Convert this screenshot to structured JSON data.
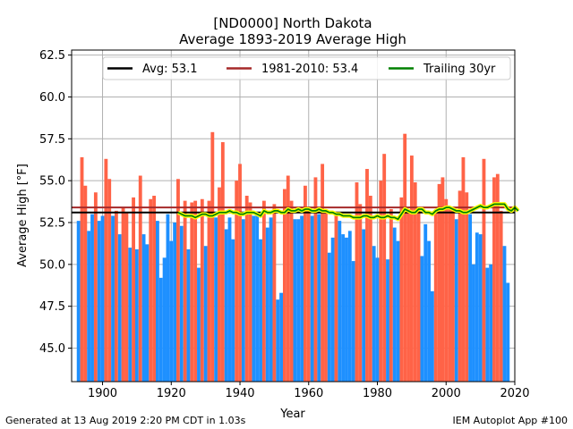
{
  "chart_data": {
    "type": "bar",
    "title": "[ND0000] North Dakota",
    "subtitle": "Average 1893-2019 Average High",
    "xlabel": "Year",
    "ylabel": "Average High [°F]",
    "xlim": [
      1891,
      2020
    ],
    "ylim": [
      43,
      62.8
    ],
    "xticks": [
      1900,
      1920,
      1940,
      1960,
      1980,
      2000,
      2020
    ],
    "yticks": [
      45.0,
      47.5,
      50.0,
      52.5,
      55.0,
      57.5,
      60.0,
      62.5
    ],
    "grid": true,
    "legend_position": "top",
    "colors": {
      "above": "#ff6347",
      "below": "#1e90ff",
      "avg": "#000000",
      "normal": "#a52a2a",
      "trailing": "#008000",
      "trailing_halo": "#ffff00"
    },
    "years_start": 1893,
    "values": [
      52.6,
      56.4,
      54.7,
      52.0,
      53.0,
      54.3,
      52.6,
      52.9,
      56.3,
      55.1,
      52.9,
      53.2,
      51.8,
      53.4,
      53.1,
      51.0,
      54.0,
      50.9,
      55.3,
      51.8,
      51.2,
      53.9,
      54.1,
      52.6,
      49.2,
      50.4,
      53.0,
      51.4,
      52.5,
      55.1,
      52.3,
      53.8,
      50.9,
      53.7,
      53.8,
      49.8,
      53.9,
      51.1,
      53.8,
      57.9,
      52.8,
      54.6,
      57.3,
      52.1,
      52.8,
      51.5,
      55.0,
      56.0,
      52.7,
      54.1,
      53.7,
      52.9,
      53.0,
      51.5,
      53.8,
      52.2,
      52.8,
      53.6,
      47.9,
      48.3,
      54.5,
      55.3,
      53.8,
      52.7,
      52.7,
      52.9,
      54.7,
      53.3,
      52.9,
      55.2,
      53.0,
      56.0,
      53.2,
      50.7,
      51.6,
      53.1,
      52.6,
      51.8,
      51.6,
      52.0,
      50.2,
      54.9,
      53.6,
      52.1,
      55.7,
      54.1,
      51.1,
      50.4,
      55.0,
      56.6,
      50.3,
      53.3,
      52.2,
      51.4,
      54.0,
      57.8,
      53.2,
      56.5,
      54.9,
      53.2,
      50.5,
      52.4,
      51.4,
      48.4,
      53.1,
      54.8,
      55.2,
      53.9,
      53.4,
      53.3,
      52.7,
      54.4,
      56.4,
      54.3,
      53.0,
      50.0,
      51.9,
      51.8,
      56.3,
      49.8,
      50.0,
      55.2,
      55.4,
      53.2,
      51.1,
      48.9
    ],
    "series": [
      {
        "name": "Avg: 53.1",
        "kind": "hline",
        "value": 53.1
      },
      {
        "name": "1981-2010: 53.4",
        "kind": "hline",
        "value": 53.4
      },
      {
        "name": "Trailing 30yr",
        "kind": "line",
        "start_year": 1922,
        "values": [
          53.1,
          53.0,
          52.9,
          52.9,
          52.9,
          52.8,
          52.9,
          53.0,
          53.0,
          52.9,
          52.9,
          53.0,
          53.1,
          53.1,
          53.1,
          53.2,
          53.1,
          53.1,
          53.0,
          53.0,
          53.1,
          53.1,
          53.1,
          53.0,
          52.9,
          53.2,
          53.1,
          53.1,
          53.2,
          53.2,
          53.1,
          53.1,
          53.3,
          53.2,
          53.2,
          53.3,
          53.2,
          53.3,
          53.3,
          53.2,
          53.2,
          53.3,
          53.2,
          53.2,
          53.1,
          53.1,
          53.0,
          53.0,
          52.9,
          52.9,
          52.9,
          52.8,
          52.8,
          52.8,
          52.9,
          52.9,
          52.8,
          52.8,
          52.9,
          52.8,
          52.8,
          52.9,
          52.8,
          52.8,
          52.7,
          53.0,
          53.3,
          53.2,
          53.1,
          53.1,
          53.3,
          53.3,
          53.1,
          53.1,
          53.0,
          53.2,
          53.3,
          53.3,
          53.4,
          53.4,
          53.3,
          53.2,
          53.2,
          53.1,
          53.1,
          53.2,
          53.3,
          53.4,
          53.5,
          53.4,
          53.4,
          53.5,
          53.6,
          53.6,
          53.6,
          53.6,
          53.3,
          53.2,
          53.4,
          53.2
        ]
      }
    ]
  },
  "footer": {
    "left": "Generated at 13 Aug 2019 2:20 PM CDT in 1.03s",
    "right": "IEM Autoplot App #100"
  }
}
